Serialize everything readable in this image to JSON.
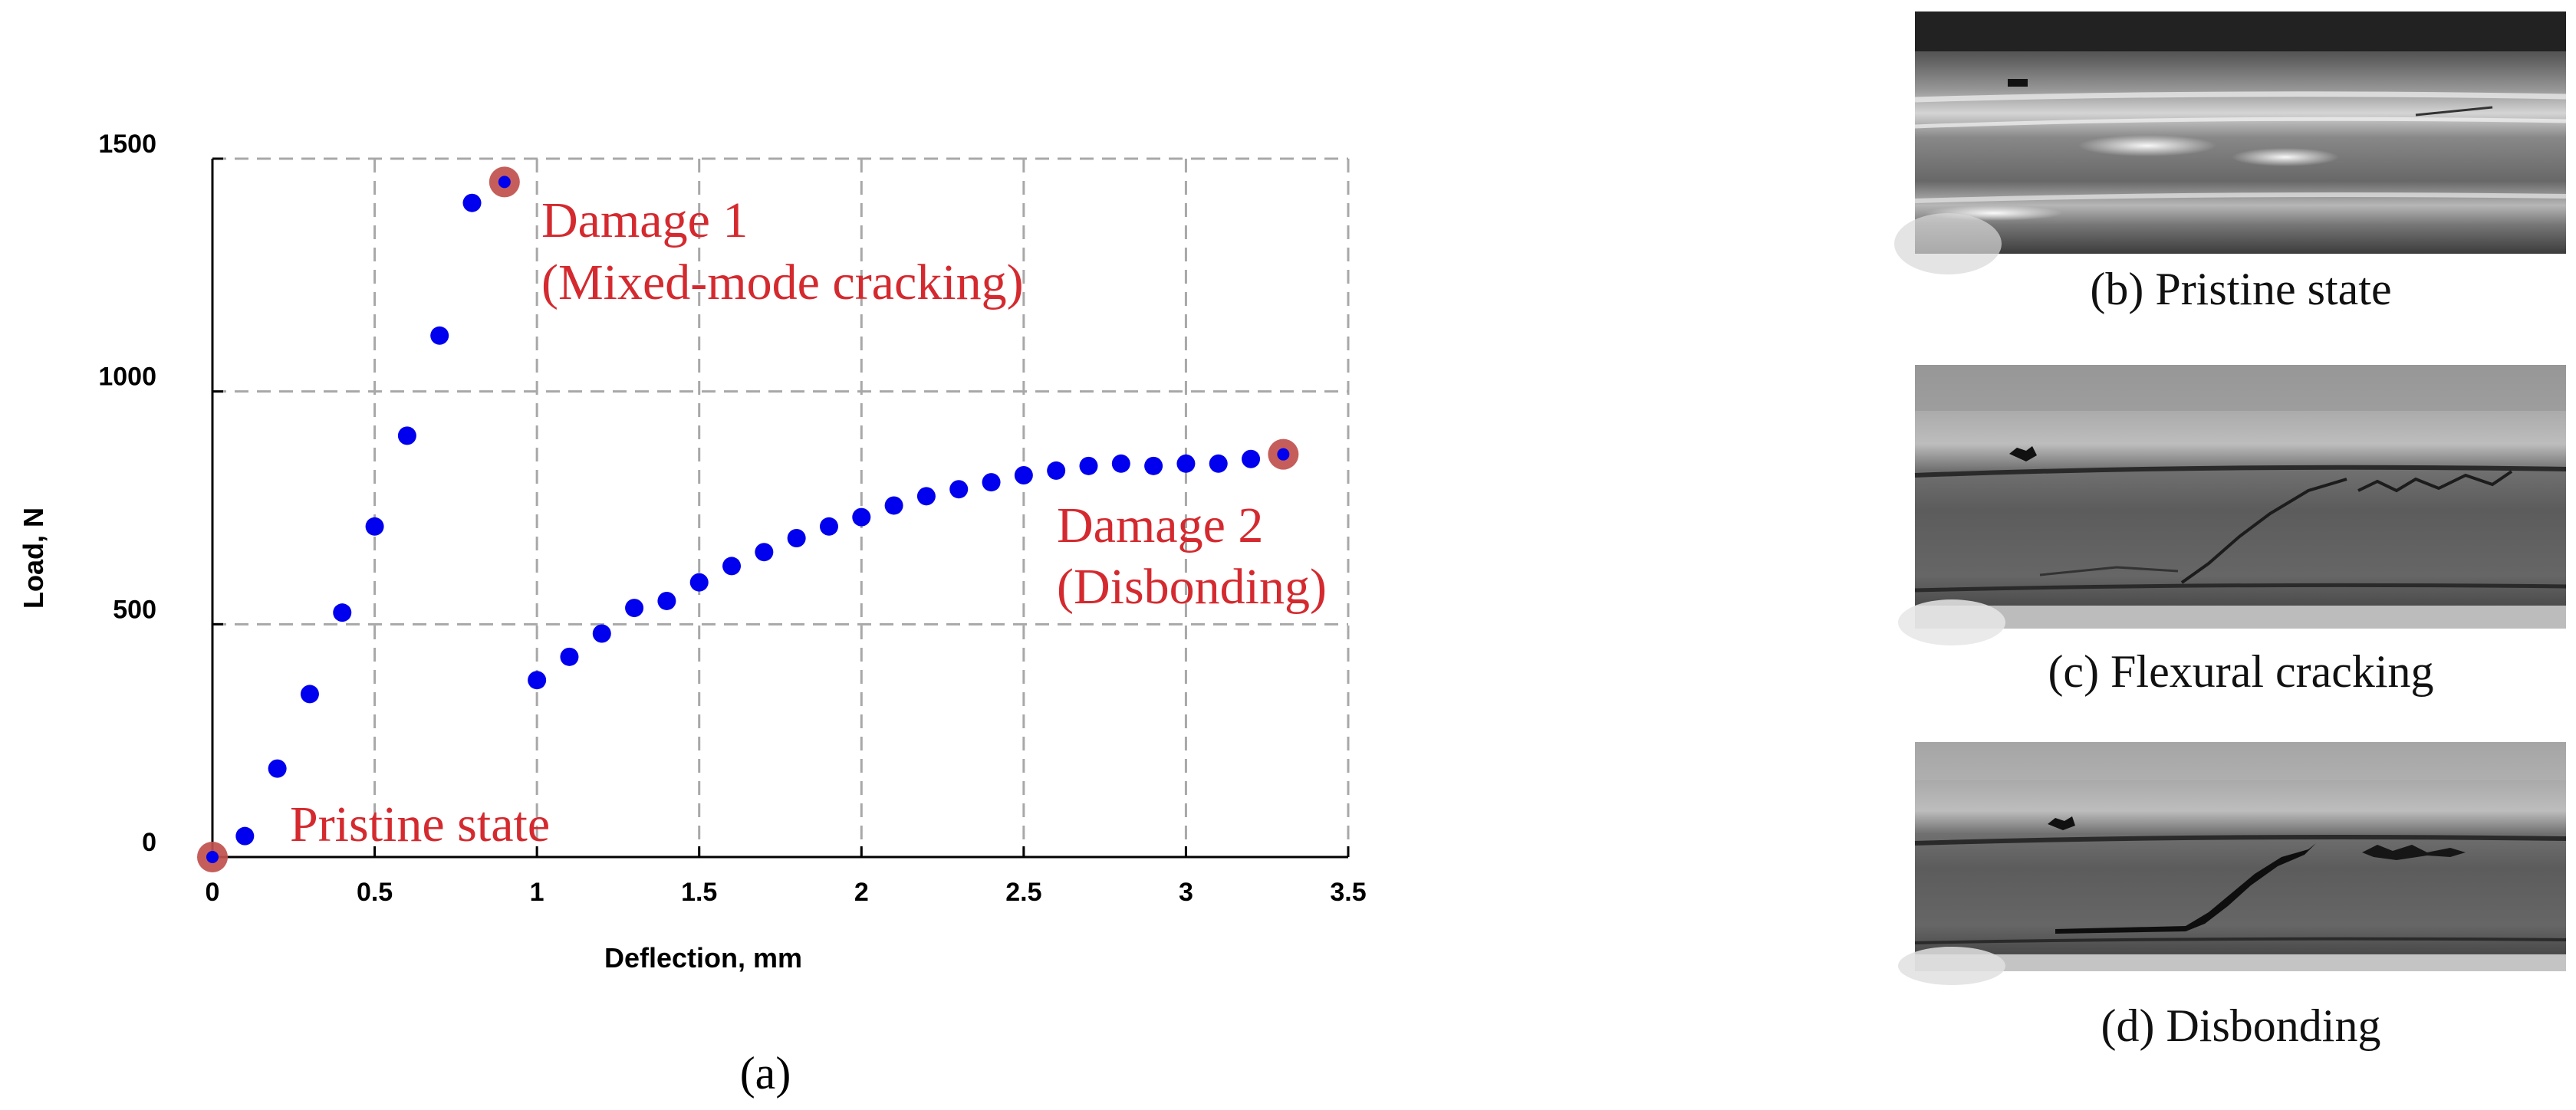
{
  "chart_data": {
    "type": "scatter",
    "xlabel": "Deflection, mm",
    "ylabel": "Load, N",
    "xlim": [
      0,
      3.5
    ],
    "ylim": [
      0,
      1500
    ],
    "xticks": [
      "0",
      "0.5",
      "1",
      "1.5",
      "2",
      "2.5",
      "3",
      "3.5"
    ],
    "yticks": [
      "0",
      "500",
      "1000",
      "1500"
    ],
    "grid": true,
    "panel_label": "(a)",
    "marker_color": "#0000ee",
    "highlight_color": "#c0504d",
    "series": [
      {
        "points": [
          [
            0.0,
            0
          ],
          [
            0.1,
            45
          ],
          [
            0.2,
            190
          ],
          [
            0.3,
            350
          ],
          [
            0.4,
            525
          ],
          [
            0.5,
            710
          ],
          [
            0.6,
            905
          ],
          [
            0.7,
            1120
          ],
          [
            0.8,
            1405
          ],
          [
            0.9,
            1450
          ],
          [
            1.0,
            380
          ],
          [
            1.1,
            430
          ],
          [
            1.2,
            480
          ],
          [
            1.3,
            535
          ],
          [
            1.4,
            550
          ],
          [
            1.5,
            590
          ],
          [
            1.6,
            625
          ],
          [
            1.7,
            655
          ],
          [
            1.8,
            685
          ],
          [
            1.9,
            710
          ],
          [
            2.0,
            730
          ],
          [
            2.1,
            755
          ],
          [
            2.2,
            775
          ],
          [
            2.3,
            790
          ],
          [
            2.4,
            805
          ],
          [
            2.5,
            820
          ],
          [
            2.6,
            830
          ],
          [
            2.7,
            840
          ],
          [
            2.8,
            845
          ],
          [
            2.9,
            840
          ],
          [
            3.0,
            845
          ],
          [
            3.1,
            845
          ],
          [
            3.2,
            855
          ],
          [
            3.3,
            865
          ]
        ]
      }
    ],
    "highlighted_points": [
      [
        0.0,
        0
      ],
      [
        0.9,
        1450
      ],
      [
        3.3,
        865
      ]
    ],
    "annotations": [
      {
        "text": "Pristine state"
      },
      {
        "line1": "Damage 1",
        "line2": "(Mixed-mode cracking)"
      },
      {
        "line1": "Damage 2",
        "line2": "(Disbonding)"
      }
    ]
  },
  "photos": [
    {
      "caption": "(b) Pristine state",
      "variant": "pristine"
    },
    {
      "caption": "(c) Flexural cracking",
      "variant": "flexural"
    },
    {
      "caption": "(d) Disbonding",
      "variant": "disbonding"
    }
  ]
}
